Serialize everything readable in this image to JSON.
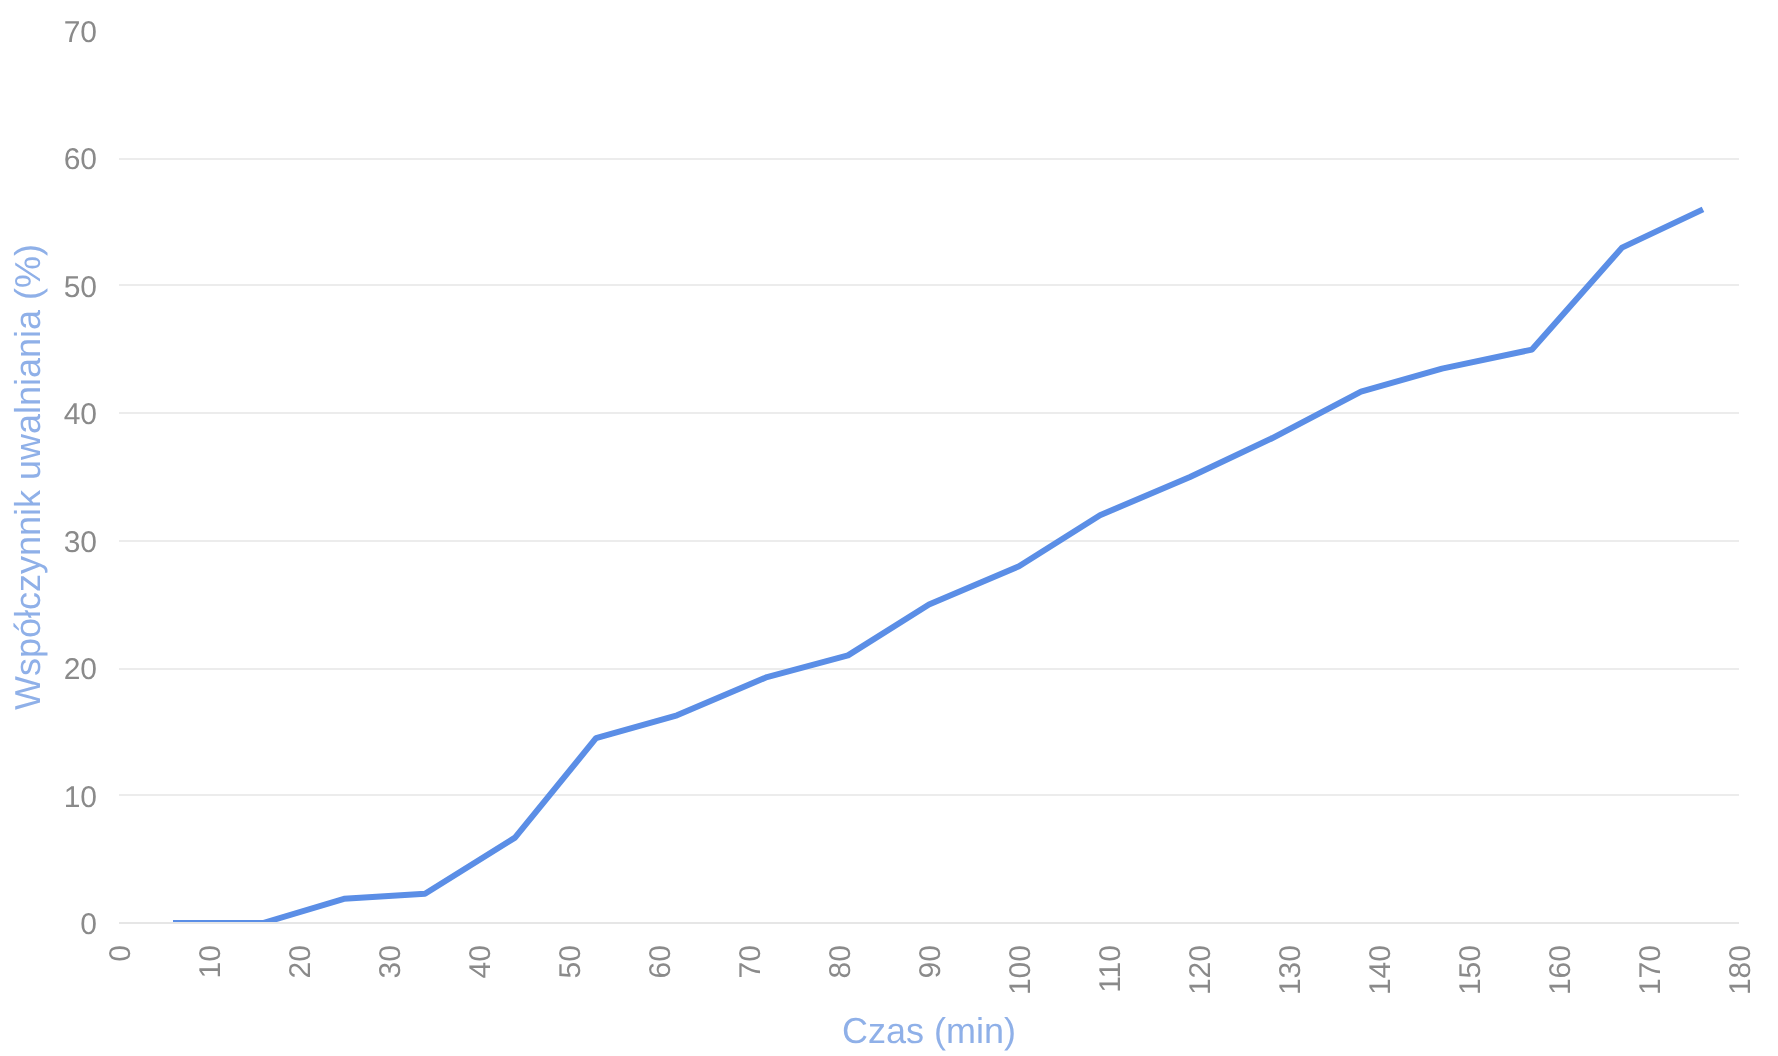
{
  "chart_data": {
    "type": "line",
    "xlabel": "Czas (min)",
    "ylabel": "Współczynnik uwalniania (%)",
    "x": [
      6,
      16,
      25,
      34,
      44,
      53,
      62,
      72,
      81,
      90,
      100,
      109,
      119,
      128,
      138,
      147,
      157,
      167,
      176
    ],
    "series": [
      {
        "color": "#5b8ee6",
        "values": [
          0,
          0,
          1.9,
          2.3,
          6.7,
          14.5,
          16.3,
          19.3,
          21,
          25,
          28,
          32,
          35,
          38,
          41.7,
          43.5,
          45,
          53,
          56
        ]
      }
    ],
    "xlim": [
      0,
      180
    ],
    "xticks": [
      0,
      10,
      20,
      30,
      40,
      50,
      60,
      70,
      80,
      90,
      100,
      110,
      120,
      130,
      140,
      150,
      160,
      170,
      180
    ],
    "ylim": [
      0,
      70
    ],
    "yticks": [
      0,
      10,
      20,
      30,
      40,
      50,
      60,
      70
    ],
    "grid": "y",
    "marker": "none",
    "line_style": "solid"
  }
}
